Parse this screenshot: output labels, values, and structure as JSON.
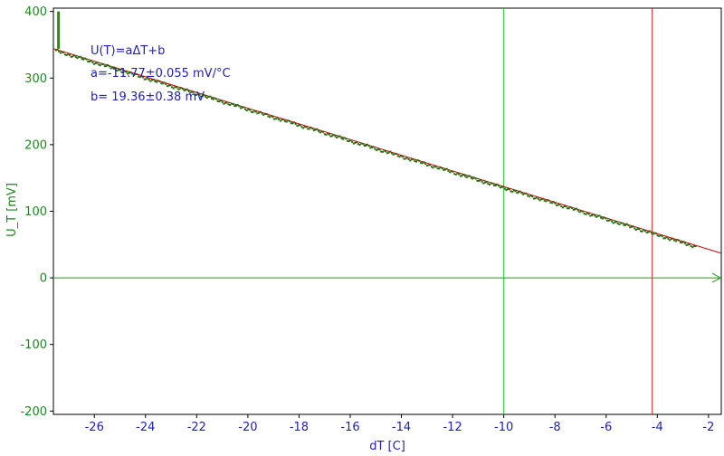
{
  "chart_data": {
    "type": "scatter",
    "title": "",
    "xlabel": "dT [C]",
    "ylabel": "U_T [mV]",
    "xlim": [
      -27.6,
      -1.5
    ],
    "ylim": [
      -205,
      405
    ],
    "xticks": [
      -26,
      -24,
      -22,
      -20,
      -18,
      -16,
      -14,
      -12,
      -10,
      -8,
      -6,
      -4,
      -2
    ],
    "yticks": [
      400,
      300,
      200,
      100,
      0,
      -100,
      -200
    ],
    "grid": false,
    "annotations": [
      "U(T)=aΔT+b",
      "a=-11.77±0.055 mV/°C",
      "b= 19.36±0.38 mV"
    ],
    "fit": {
      "slope": -11.77,
      "intercept": 19.36,
      "x_range": [
        -27.6,
        -1.5
      ],
      "color": "#d00000"
    },
    "series": [
      {
        "type": "scatter",
        "color": "#2a6a10",
        "x_start": -27.5,
        "x_end": -2.5,
        "samples": 420,
        "slope": -11.77,
        "intercept": 19.36
      },
      {
        "type": "vertical-spike",
        "color": "#2a8a10",
        "x": -27.4,
        "y_range": [
          344,
          400
        ]
      }
    ],
    "reference_lines": [
      {
        "orientation": "vertical",
        "x": -10.0,
        "color": "#22cc22"
      },
      {
        "orientation": "vertical",
        "x": -4.2,
        "color": "#dd2222"
      },
      {
        "orientation": "horizontal",
        "y": 0,
        "color": "#1a9a1a"
      }
    ],
    "colors": {
      "y_axis": "#1a8a1a",
      "x_axis": "#2020c0",
      "frame": "#000000"
    }
  }
}
